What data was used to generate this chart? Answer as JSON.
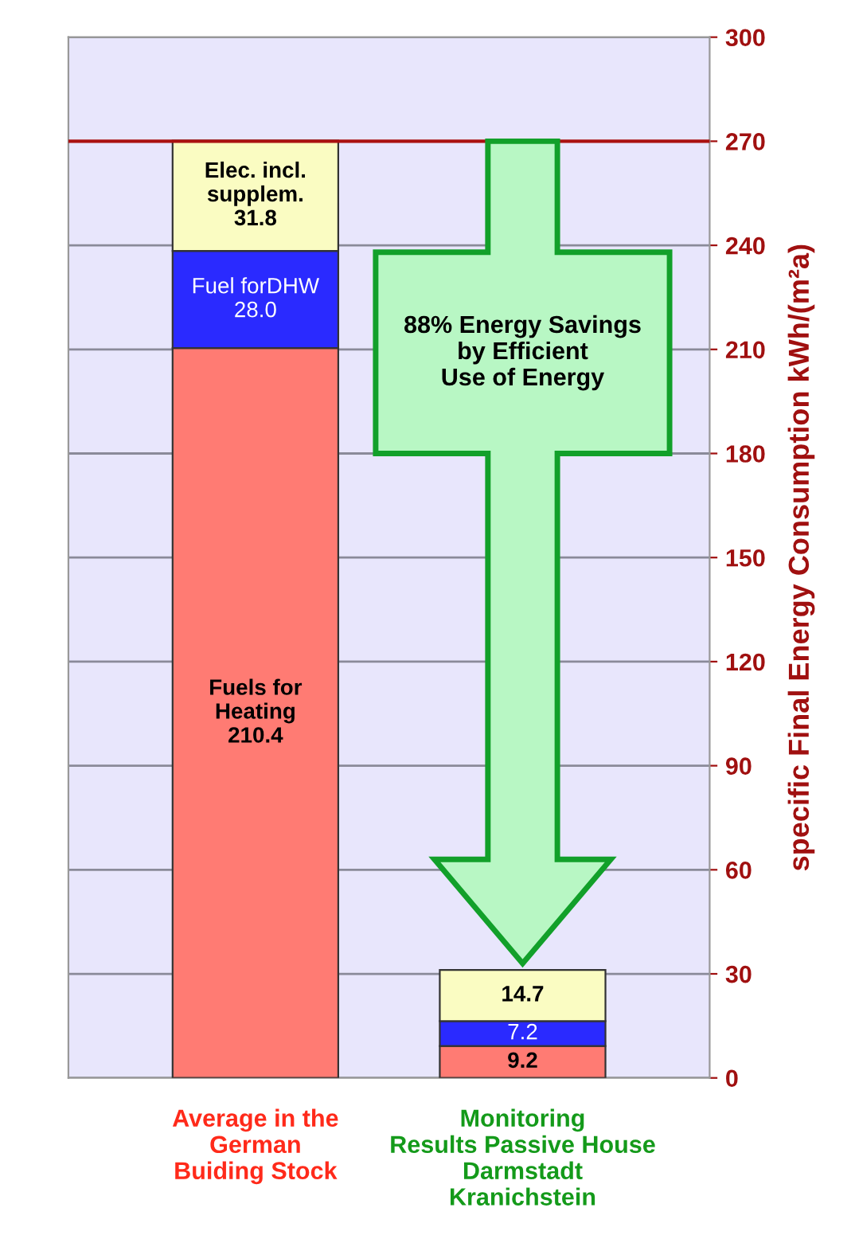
{
  "chart_data": {
    "type": "bar",
    "stacked": true,
    "categories": [
      "Average in the\nGerman\nBuiding Stock",
      "Monitoring\nResults Passive House\nDarmstadt\nKranichstein"
    ],
    "ylabel": "specific Final Energy Consumption kWh/(m²a)",
    "ylim": [
      0,
      300
    ],
    "yticks": [
      0,
      30,
      60,
      90,
      120,
      150,
      180,
      210,
      240,
      270,
      300
    ],
    "grid": "y",
    "series": [
      {
        "name": "Fuels for\nHeating",
        "color": "#ff7b73",
        "values": [
          210.4,
          9.2
        ],
        "value_labels": [
          "210.4",
          "9.2"
        ]
      },
      {
        "name": "Fuel forDHW",
        "color": "#2a2aff",
        "values": [
          28.0,
          7.2
        ],
        "value_labels": [
          "28.0",
          "7.2"
        ]
      },
      {
        "name": "Elec. incl.\nsupplem.",
        "color": "#fafcc2",
        "values": [
          31.8,
          14.7
        ],
        "value_labels": [
          "31.8",
          "14.7"
        ]
      }
    ],
    "ref_lines": [
      {
        "axis": "y",
        "value": 270,
        "color": "#aa1111"
      }
    ],
    "annotations": [
      "88% Energy Savings\nby Efficient\nUse of Energy"
    ]
  }
}
